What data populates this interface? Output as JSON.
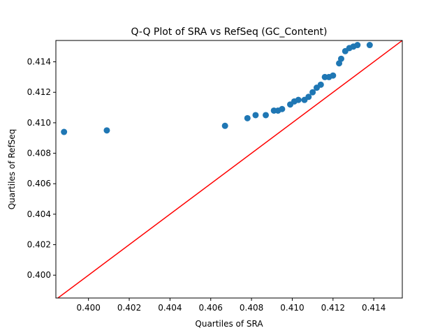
{
  "chart_data": {
    "type": "scatter",
    "title": "Q-Q Plot of SRA vs RefSeq (GC_Content)",
    "xlabel": "Quartiles of SRA",
    "ylabel": "Quartiles of RefSeq",
    "xlim": [
      0.3984,
      0.4154
    ],
    "ylim": [
      0.3985,
      0.4154
    ],
    "xticks": [
      "0.400",
      "0.402",
      "0.404",
      "0.406",
      "0.408",
      "0.410",
      "0.412",
      "0.414"
    ],
    "yticks": [
      "0.400",
      "0.402",
      "0.404",
      "0.406",
      "0.408",
      "0.410",
      "0.412",
      "0.414"
    ],
    "grid": false,
    "legend": "none",
    "marker_color": "#1f77b4",
    "line_color": "#ff0000",
    "reference_line": "y = x",
    "series": [
      {
        "x": [
          0.3988,
          0.4009,
          0.4067,
          0.4078,
          0.4082,
          0.4087,
          0.4091,
          0.4093,
          0.4095,
          0.4099,
          0.4101,
          0.4103,
          0.4106,
          0.4108,
          0.411,
          0.4112,
          0.4114,
          0.4116,
          0.4118,
          0.412,
          0.4123,
          0.4124,
          0.4126,
          0.4128,
          0.413,
          0.4132,
          0.4138
        ],
        "y": [
          0.4094,
          0.4095,
          0.4098,
          0.4103,
          0.4105,
          0.4105,
          0.4108,
          0.4108,
          0.4109,
          0.4112,
          0.4114,
          0.4115,
          0.4115,
          0.4117,
          0.412,
          0.4123,
          0.4125,
          0.413,
          0.413,
          0.4131,
          0.4139,
          0.4142,
          0.4147,
          0.4149,
          0.415,
          0.4151,
          0.4151
        ]
      }
    ]
  }
}
